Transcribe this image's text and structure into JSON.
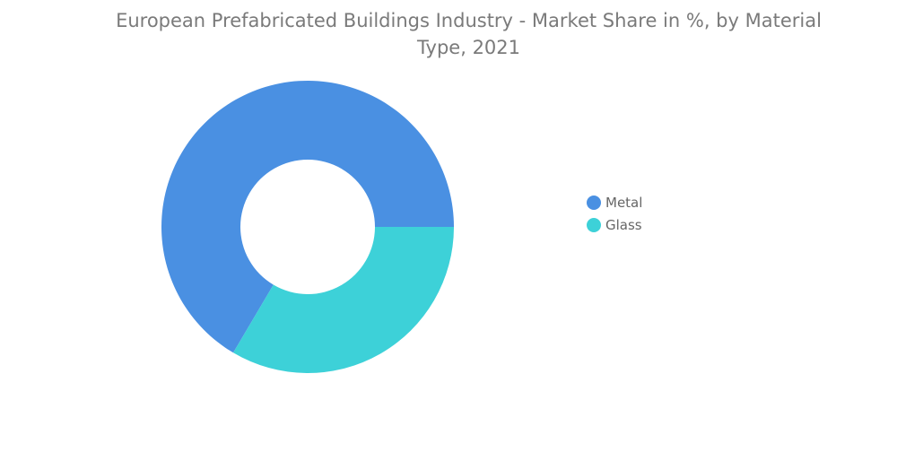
{
  "chart_data": {
    "type": "pie",
    "title": "European Prefabricated Buildings Industry - Market Share in %, by Material Type, 2021",
    "series": [
      {
        "name": "Metal",
        "value": 66.5,
        "color": "#4a90e2"
      },
      {
        "name": "Glass",
        "value": 33.5,
        "color": "#3dd1d8"
      }
    ],
    "donut": true,
    "legend_position": "right"
  }
}
